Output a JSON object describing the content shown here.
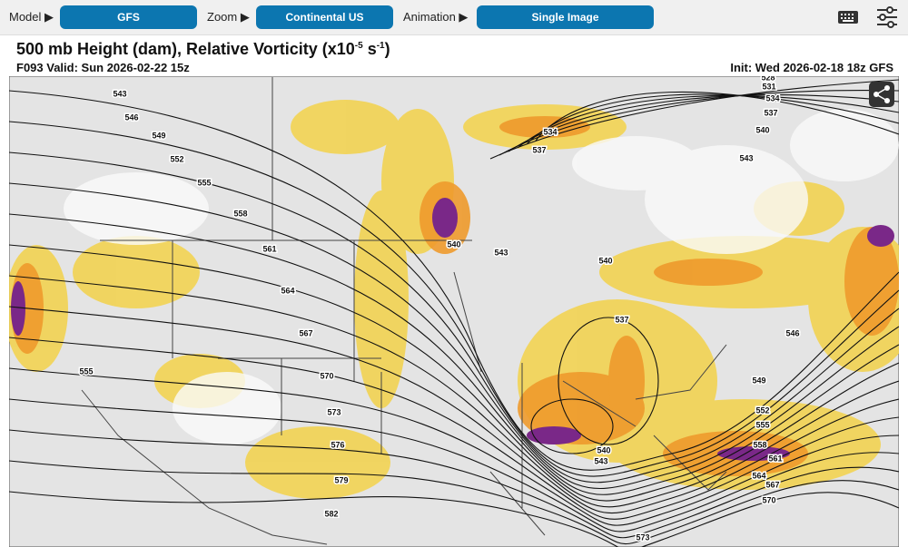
{
  "toolbar": {
    "model_label": "Model ▶",
    "model": "GFS",
    "zoom_label": "Zoom ▶",
    "zoom": "Continental US",
    "animation_label": "Animation ▶",
    "animation": "Single Image"
  },
  "header": {
    "title_parts": [
      "500 mb Height (dam), Relative Vorticity (x10",
      "-5",
      " s",
      "-1",
      ")"
    ],
    "valid": "F093 Valid: Sun 2026-02-22 15z",
    "init": "Init: Wed 2026-02-18 18z GFS"
  },
  "map": {
    "contour_labels": [
      543,
      546,
      549,
      552,
      555,
      558,
      561,
      564,
      567,
      570,
      573,
      576,
      579,
      582,
      555,
      540,
      543,
      534,
      537,
      540,
      537,
      540,
      543,
      528,
      531,
      534,
      537,
      540,
      543,
      546,
      549,
      552,
      555,
      558,
      561,
      564,
      567,
      570,
      573
    ]
  }
}
